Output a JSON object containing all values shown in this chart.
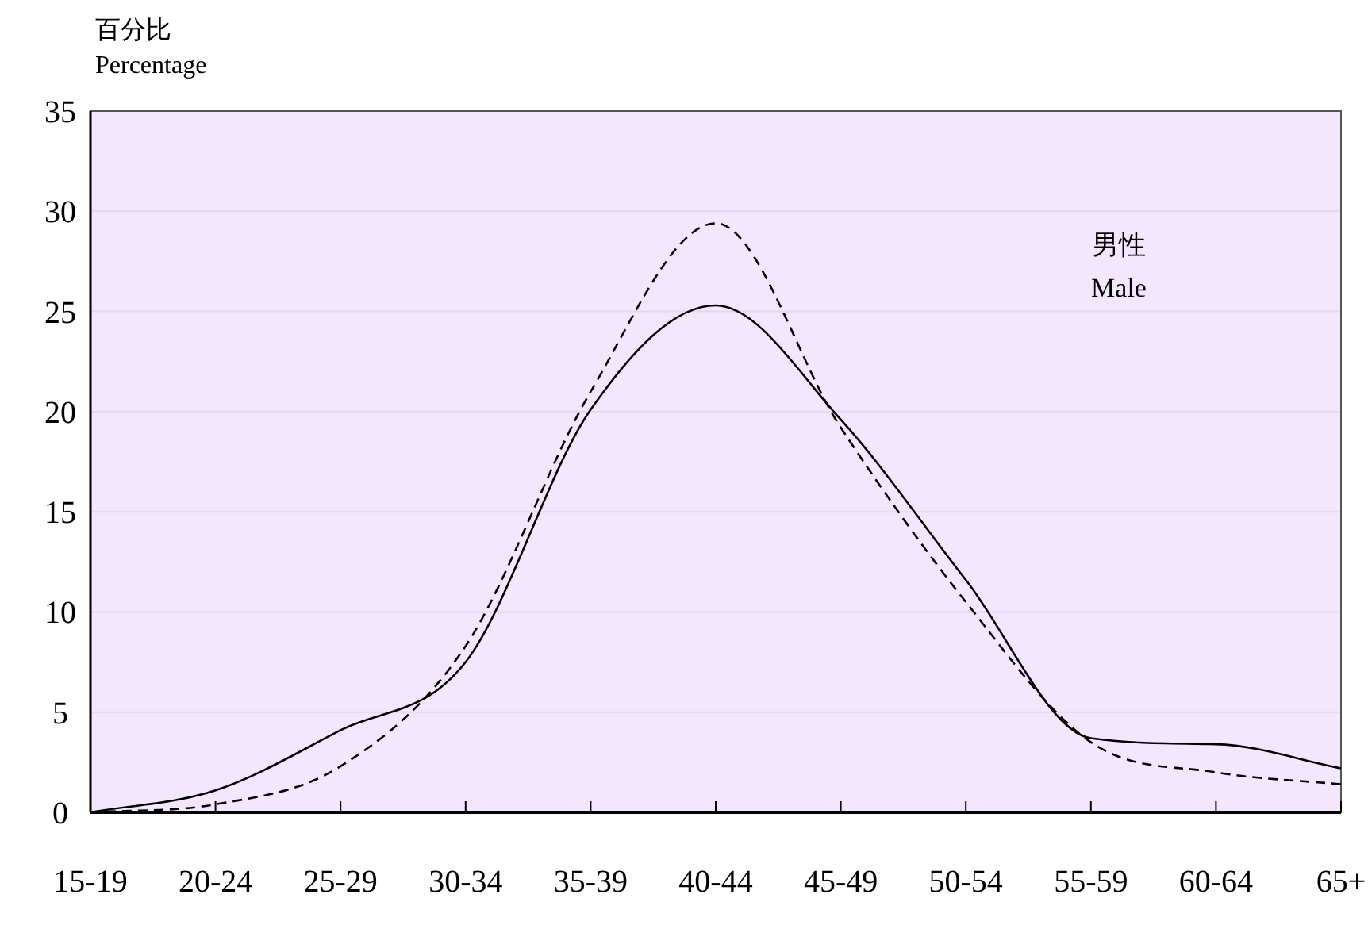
{
  "chart_data": {
    "type": "line",
    "ylabel": "百分比\nPercentage",
    "annotations": [
      "男性\nMale"
    ],
    "categories": [
      "15-19",
      "20-24",
      "25-29",
      "30-34",
      "35-39",
      "40-44",
      "45-49",
      "50-54",
      "55-59",
      "60-64",
      "65+"
    ],
    "series": [
      {
        "color": "#000000",
        "line_style": "solid",
        "values": [
          0,
          1.1,
          4.1,
          7.5,
          20.1,
          25.3,
          19.6,
          11.6,
          3.7,
          3.4,
          2.2
        ]
      },
      {
        "color": "#000000",
        "line_style": "dashed",
        "values": [
          0,
          0.4,
          2.3,
          8.3,
          21,
          29.4,
          19.2,
          10.5,
          3.5,
          2.0,
          1.4
        ]
      }
    ],
    "ylim": [
      0,
      35
    ],
    "yticks": [
      0,
      5,
      10,
      15,
      20,
      25,
      30,
      35
    ],
    "grid": "y",
    "marker": "none"
  }
}
